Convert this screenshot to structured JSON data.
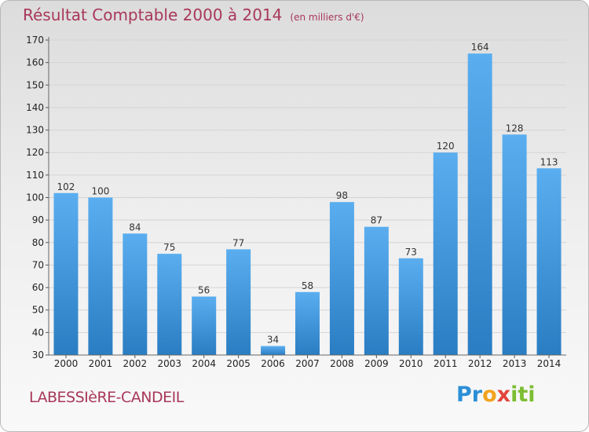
{
  "title": "Résultat Comptable 2000 à 2014",
  "unit": "(en milliers d'€)",
  "commune": "LABESSIèRE-CANDEIL",
  "logo": {
    "part1": "Pr",
    "part2": "o",
    "part3": "x",
    "part4": "iti"
  },
  "colors": {
    "bar_top": "#5aaef0",
    "bar_bottom": "#2a7dc2",
    "title": "#a8385a"
  },
  "chart_data": {
    "type": "bar",
    "categories": [
      "2000",
      "2001",
      "2002",
      "2003",
      "2004",
      "2005",
      "2006",
      "2007",
      "2008",
      "2009",
      "2010",
      "2011",
      "2012",
      "2013",
      "2014"
    ],
    "values": [
      102,
      100,
      84,
      75,
      56,
      77,
      34,
      58,
      98,
      87,
      73,
      120,
      164,
      128,
      113
    ],
    "title": "Résultat Comptable 2000 à 2014",
    "xlabel": "",
    "ylabel": "",
    "ylim": [
      30,
      170
    ],
    "yticks": [
      30,
      40,
      50,
      60,
      70,
      80,
      90,
      100,
      110,
      120,
      130,
      140,
      150,
      160,
      170
    ],
    "grid": true,
    "data_labels": true
  }
}
